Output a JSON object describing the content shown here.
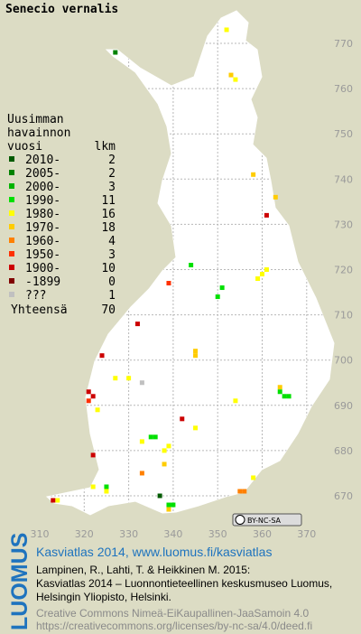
{
  "title": "Senecio vernalis",
  "legend": {
    "heading": [
      "Uusimman",
      "havainnon",
      "vuosi"
    ],
    "count_heading": "lkm",
    "items": [
      {
        "label": "2010-",
        "count": 2,
        "color": "#005a00"
      },
      {
        "label": "2005-",
        "count": 2,
        "color": "#008200"
      },
      {
        "label": "2000-",
        "count": 3,
        "color": "#00b400"
      },
      {
        "label": "1990-",
        "count": 11,
        "color": "#00e000"
      },
      {
        "label": "1980-",
        "count": 16,
        "color": "#ffff00"
      },
      {
        "label": "1970-",
        "count": 18,
        "color": "#ffcc00"
      },
      {
        "label": "1960-",
        "count": 4,
        "color": "#ff8000"
      },
      {
        "label": "1950-",
        "count": 3,
        "color": "#ff3000"
      },
      {
        "label": "1900-",
        "count": 10,
        "color": "#cc0000"
      },
      {
        "label": "-1899",
        "count": 0,
        "color": "#800000"
      },
      {
        "label": "???",
        "count": 1,
        "color": "#c0c0c0"
      }
    ],
    "total": {
      "label": "Yhteensä",
      "value": 70
    }
  },
  "x_ticks": [
    310,
    320,
    330,
    340,
    350,
    360,
    370
  ],
  "y_ticks": [
    670,
    680,
    690,
    700,
    710,
    720,
    730,
    740,
    750,
    760,
    770
  ],
  "records": [
    {
      "e": 327,
      "n": 768,
      "period": 1
    },
    {
      "e": 352,
      "n": 773,
      "period": 4
    },
    {
      "e": 353,
      "n": 763,
      "period": 5
    },
    {
      "e": 354,
      "n": 762,
      "period": 4
    },
    {
      "e": 358,
      "n": 741,
      "period": 5
    },
    {
      "e": 363,
      "n": 736,
      "period": 5
    },
    {
      "e": 361,
      "n": 732,
      "period": 8
    },
    {
      "e": 344,
      "n": 721,
      "period": 3
    },
    {
      "e": 339,
      "n": 717,
      "period": 7
    },
    {
      "e": 351,
      "n": 716,
      "period": 3
    },
    {
      "e": 350,
      "n": 714,
      "period": 3
    },
    {
      "e": 359,
      "n": 718,
      "period": 4
    },
    {
      "e": 360,
      "n": 719,
      "period": 4
    },
    {
      "e": 361,
      "n": 720,
      "period": 4
    },
    {
      "e": 332,
      "n": 708,
      "period": 8
    },
    {
      "e": 345,
      "n": 702,
      "period": 5
    },
    {
      "e": 345,
      "n": 701,
      "period": 5
    },
    {
      "e": 324,
      "n": 701,
      "period": 8
    },
    {
      "e": 327,
      "n": 696,
      "period": 4
    },
    {
      "e": 330,
      "n": 696,
      "period": 4
    },
    {
      "e": 333,
      "n": 695,
      "period": 10
    },
    {
      "e": 321,
      "n": 693,
      "period": 8
    },
    {
      "e": 322,
      "n": 692,
      "period": 8
    },
    {
      "e": 321,
      "n": 691,
      "period": 7
    },
    {
      "e": 323,
      "n": 689,
      "period": 4
    },
    {
      "e": 342,
      "n": 687,
      "period": 8
    },
    {
      "e": 354,
      "n": 691,
      "period": 4
    },
    {
      "e": 364,
      "n": 694,
      "period": 5
    },
    {
      "e": 364,
      "n": 693,
      "period": 3
    },
    {
      "e": 365,
      "n": 692,
      "period": 3
    },
    {
      "e": 366,
      "n": 692,
      "period": 3
    },
    {
      "e": 345,
      "n": 685,
      "period": 4
    },
    {
      "e": 335,
      "n": 683,
      "period": 3
    },
    {
      "e": 336,
      "n": 683,
      "period": 3
    },
    {
      "e": 333,
      "n": 682,
      "period": 4
    },
    {
      "e": 338,
      "n": 680,
      "period": 4
    },
    {
      "e": 339,
      "n": 681,
      "period": 4
    },
    {
      "e": 322,
      "n": 679,
      "period": 8
    },
    {
      "e": 338,
      "n": 677,
      "period": 5
    },
    {
      "e": 333,
      "n": 675,
      "period": 6
    },
    {
      "e": 325,
      "n": 672,
      "period": 3
    },
    {
      "e": 325,
      "n": 671,
      "period": 4
    },
    {
      "e": 322,
      "n": 672,
      "period": 4
    },
    {
      "e": 337,
      "n": 670,
      "period": 0
    },
    {
      "e": 339,
      "n": 668,
      "period": 3
    },
    {
      "e": 340,
      "n": 668,
      "period": 3
    },
    {
      "e": 339,
      "n": 667,
      "period": 5
    },
    {
      "e": 355,
      "n": 671,
      "period": 6
    },
    {
      "e": 356,
      "n": 671,
      "period": 6
    },
    {
      "e": 358,
      "n": 674,
      "period": 4
    },
    {
      "e": 314,
      "n": 669,
      "period": 4
    },
    {
      "e": 313,
      "n": 669,
      "period": 8
    }
  ],
  "license_badge": "BY-NC-SA",
  "footer": {
    "logo": "LUOMUS",
    "headline": "Kasviatlas 2014, www.luomus.fi/kasviatlas",
    "citation": [
      "Lampinen, R., Lahti, T. & Heikkinen M. 2015:",
      "Kasviatlas 2014 – Luonnontieteellinen keskusmuseo Luomus,",
      "Helsingin Yliopisto, Helsinki."
    ],
    "license": [
      "Creative Commons Nimeä-EiKaupallinen-JaaSamoin 4.0",
      "https://creativecommons.org/licenses/by-nc-sa/4.0/deed.fi"
    ]
  }
}
